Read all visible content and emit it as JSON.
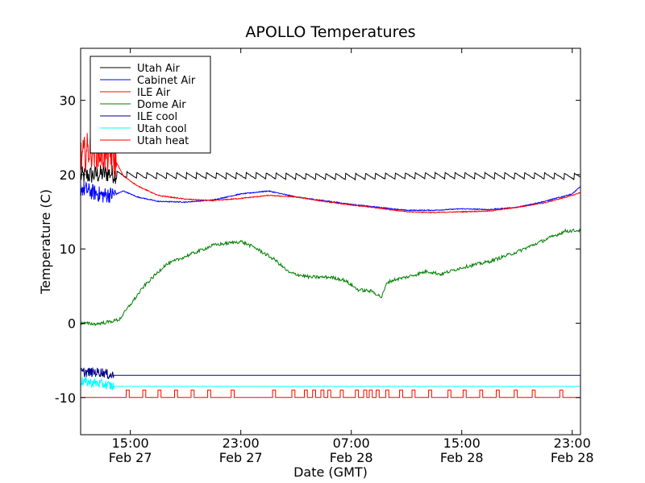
{
  "chart_data": {
    "type": "line",
    "title": "APOLLO Temperatures",
    "xlabel": "Date (GMT)",
    "ylabel": "Temperature (C)",
    "x_unit": "hours since Feb 27 00:00 GMT",
    "xlim": [
      11.4,
      47.6
    ],
    "ylim": [
      -15,
      37
    ],
    "grid": false,
    "legend_position": "top-left",
    "x_ticks": [
      {
        "value": 15,
        "time": "15:00",
        "date": "Feb 27"
      },
      {
        "value": 23,
        "time": "23:00",
        "date": "Feb 27"
      },
      {
        "value": 31,
        "time": "07:00",
        "date": "Feb 28"
      },
      {
        "value": 39,
        "time": "15:00",
        "date": "Feb 28"
      },
      {
        "value": 47,
        "time": "23:00",
        "date": "Feb 28"
      }
    ],
    "y_ticks": [
      {
        "value": -10,
        "label": "-10"
      },
      {
        "value": 0,
        "label": "0"
      },
      {
        "value": 10,
        "label": "10"
      },
      {
        "value": 20,
        "label": "20"
      },
      {
        "value": 30,
        "label": "30"
      }
    ],
    "series": [
      {
        "name": "Utah Air",
        "color": "#000000",
        "style": "sawtooth",
        "x": [
          11.4,
          12.5,
          13.5,
          14.0,
          16,
          20,
          24,
          28,
          32,
          36,
          40,
          44,
          47.6
        ],
        "y": [
          19.8,
          20.0,
          20.2,
          20.0,
          19.8,
          19.8,
          19.8,
          19.7,
          19.7,
          19.8,
          19.8,
          19.8,
          19.7
        ]
      },
      {
        "name": "Cabinet Air",
        "color": "#0000ff",
        "style": "noisy-start",
        "x": [
          11.4,
          12.0,
          13.0,
          14.0,
          14.5,
          15.5,
          17,
          19,
          21,
          22,
          23,
          25,
          27,
          29,
          31,
          33,
          35,
          37,
          39,
          41,
          43,
          45,
          47,
          47.6
        ],
        "y": [
          18.2,
          17.8,
          17.2,
          17.4,
          17.8,
          17.0,
          16.4,
          16.3,
          16.6,
          17.0,
          17.4,
          17.8,
          17.0,
          16.5,
          16.0,
          15.6,
          15.2,
          15.2,
          15.4,
          15.3,
          15.6,
          16.4,
          17.4,
          18.4
        ]
      },
      {
        "name": "ILE Air",
        "color": "#ff0000",
        "style": "noisy-start",
        "x": [
          11.4,
          12.0,
          13.0,
          13.9,
          14.5,
          15.5,
          17,
          19,
          21,
          23,
          25,
          27,
          29,
          31,
          33,
          35,
          37,
          39,
          41,
          43,
          45,
          47,
          47.6
        ],
        "y": [
          22.0,
          23.5,
          23.0,
          22.0,
          19.8,
          18.5,
          17.2,
          16.7,
          16.5,
          16.8,
          17.2,
          17.0,
          16.4,
          15.9,
          15.5,
          15.0,
          14.9,
          15.0,
          15.1,
          15.6,
          16.2,
          17.2,
          17.6
        ]
      },
      {
        "name": "Dome Air",
        "color": "#008000",
        "style": "noisy",
        "x": [
          11.4,
          12.5,
          13.5,
          14.2,
          15,
          16,
          17.5,
          19,
          21,
          23,
          24,
          25.5,
          26.5,
          27,
          28,
          29.5,
          30.5,
          31.5,
          32.5,
          33.2,
          33.6,
          34.2,
          35,
          36.5,
          37.5,
          39,
          41,
          43,
          45,
          46.5,
          47.6
        ],
        "y": [
          0.0,
          -0.1,
          0.2,
          0.5,
          2.5,
          5.0,
          7.8,
          9.0,
          10.5,
          11.0,
          10.2,
          8.5,
          6.8,
          6.6,
          6.2,
          6.2,
          5.8,
          4.5,
          4.3,
          3.5,
          5.5,
          5.9,
          6.2,
          7.0,
          6.6,
          7.5,
          8.3,
          9.6,
          11.2,
          12.4,
          12.5
        ]
      },
      {
        "name": "ILE cool",
        "color": "#00008b",
        "style": "flat-noisy-start",
        "x": [
          11.4,
          13.0,
          13.5,
          47.6
        ],
        "y": [
          -6.6,
          -6.6,
          -7.0,
          -7.0
        ]
      },
      {
        "name": "Utah cool",
        "color": "#00ffff",
        "style": "flat-noisy-start",
        "x": [
          11.4,
          13.0,
          13.8,
          47.6
        ],
        "y": [
          -7.8,
          -8.2,
          -8.5,
          -8.5
        ]
      },
      {
        "name": "Utah heat",
        "color": "#ff0000",
        "style": "pulses",
        "x": [
          11.4,
          47.6
        ],
        "y": [
          -10,
          -10
        ],
        "pulse_high": -9.0,
        "pulse_starts": [
          14.7,
          15.9,
          17.0,
          18.2,
          19.4,
          20.6,
          22.3,
          25.3,
          26.7,
          27.6,
          28.2,
          28.8,
          29.3,
          30.2,
          31.3,
          31.9,
          32.3,
          32.8,
          33.5,
          34.5,
          35.4,
          36.6,
          38.0,
          39.1,
          40.3,
          41.5,
          42.8,
          44.1,
          46.1
        ]
      }
    ],
    "x_step_labels_note": "ticks every 8 hours"
  }
}
